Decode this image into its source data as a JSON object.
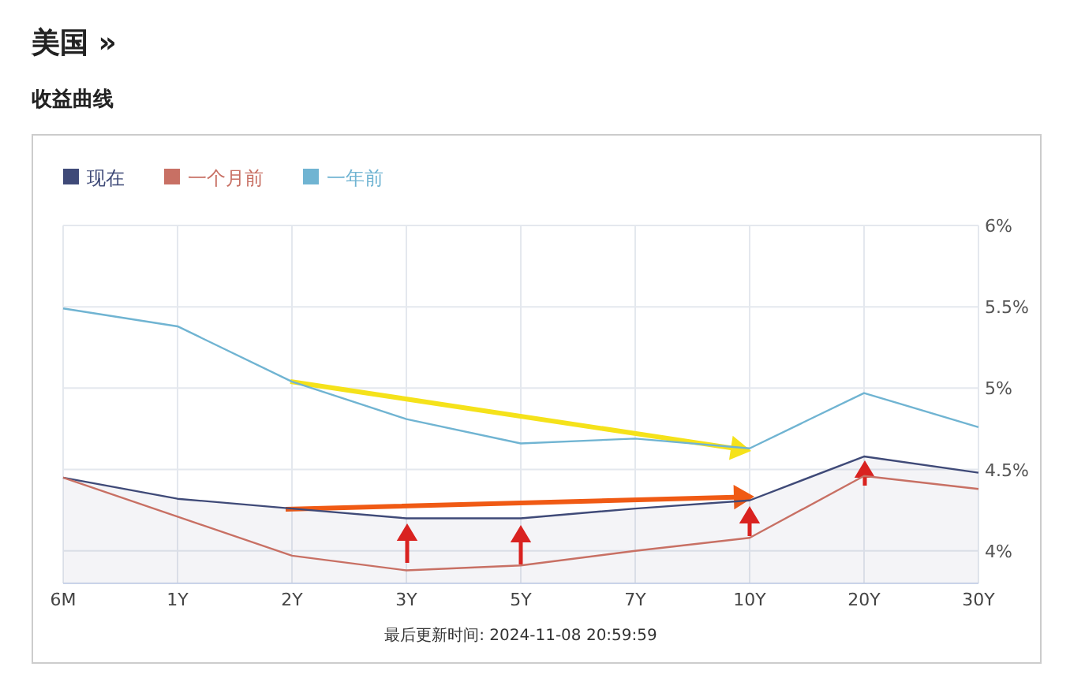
{
  "chart_data": {
    "type": "line",
    "title": "美国 »",
    "subtitle": "收益曲线",
    "categories": [
      "6M",
      "1Y",
      "2Y",
      "3Y",
      "5Y",
      "7Y",
      "10Y",
      "20Y",
      "30Y"
    ],
    "series": [
      {
        "name": "现在",
        "type": "area",
        "color": "#3f4a78",
        "values": [
          4.45,
          4.32,
          4.26,
          4.2,
          4.2,
          4.26,
          4.31,
          4.58,
          4.48
        ]
      },
      {
        "name": "一个月前",
        "type": "line",
        "color": "#c87064",
        "values": [
          4.45,
          4.21,
          3.97,
          3.88,
          3.91,
          4.0,
          4.08,
          4.46,
          4.38
        ]
      },
      {
        "name": "一年前",
        "type": "line",
        "color": "#70b4d2",
        "values": [
          5.49,
          5.38,
          5.04,
          4.81,
          4.66,
          4.69,
          4.63,
          4.97,
          4.76
        ]
      }
    ],
    "ylim": [
      3.8,
      6
    ],
    "yticks": [
      {
        "value": 4,
        "label": "4%"
      },
      {
        "value": 4.5,
        "label": "4.5%"
      },
      {
        "value": 5,
        "label": "5%"
      },
      {
        "value": 5.5,
        "label": "5.5%"
      },
      {
        "value": 6,
        "label": "6%"
      }
    ],
    "grid": true,
    "legend": "top left",
    "marker": "none",
    "line_style": "solid",
    "annotations": [
      "最后更新时间: 2024-11-08 20:59:59"
    ]
  }
}
